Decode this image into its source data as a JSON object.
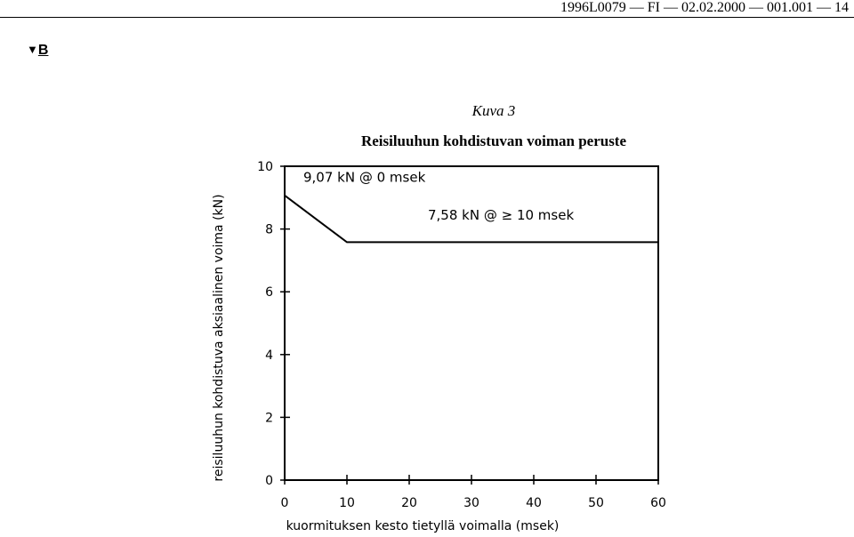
{
  "header": {
    "text": "1996L0079 — FI — 02.02.2000 — 001.001 — 14"
  },
  "marker": {
    "arrow": "▼",
    "letter": "B"
  },
  "figure": {
    "label": "Kuva 3"
  },
  "chart_data": {
    "type": "line",
    "title": "Reisiluuhun kohdistuvan voiman peruste",
    "xlabel": "kuormituksen kesto tietyllä voimalla (msek)",
    "ylabel": "reisiluuhun kohdistuva aksiaalinen voima (kN)",
    "xlim": [
      0,
      60
    ],
    "ylim": [
      0,
      10
    ],
    "xticks": [
      0,
      10,
      20,
      30,
      40,
      50,
      60
    ],
    "yticks": [
      0,
      2,
      4,
      6,
      8,
      10
    ],
    "grid": false,
    "series": [
      {
        "x": [
          0,
          10,
          60
        ],
        "y": [
          9.07,
          7.58,
          7.58
        ]
      }
    ],
    "annotations": [
      {
        "text": "9,07 kN @ 0 msek",
        "x": 3,
        "y": 9.5
      },
      {
        "text": "7,58 kN @ ≥ 10 msek",
        "x": 23,
        "y": 8.3
      }
    ]
  }
}
